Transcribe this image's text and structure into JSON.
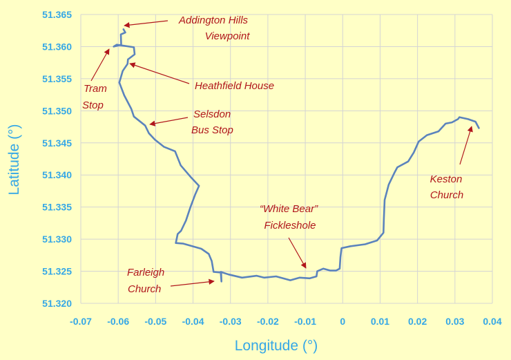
{
  "chart_data": {
    "type": "line",
    "xlabel": "Longitude (°)",
    "ylabel": "Latitude (°)",
    "xlim": [
      -0.07,
      0.04
    ],
    "ylim": [
      51.32,
      51.365
    ],
    "x_ticks": [
      -0.07,
      -0.06,
      -0.05,
      -0.04,
      -0.03,
      -0.02,
      -0.01,
      0,
      0.01,
      0.02,
      0.03,
      0.04
    ],
    "x_tick_labels": [
      "-0.07",
      "-0.06",
      "-0.05",
      "-0.04",
      "-0.03",
      "-0.02",
      "-0.01",
      "0",
      "0.01",
      "0.02",
      "0.03",
      "0.04"
    ],
    "y_ticks": [
      51.32,
      51.325,
      51.33,
      51.335,
      51.34,
      51.345,
      51.35,
      51.355,
      51.36,
      51.365
    ],
    "y_tick_labels": [
      "51.320",
      "51.325",
      "51.330",
      "51.335",
      "51.340",
      "51.345",
      "51.350",
      "51.355",
      "51.360",
      "51.365"
    ],
    "grid": true,
    "line_color": "#5b83bd",
    "annotation_color": "#b0161c",
    "axis_color": "#35a7e6",
    "background": "#ffffc6",
    "series": [
      {
        "points": [
          [
            -0.0586,
            51.3627
          ],
          [
            -0.0581,
            51.3622
          ],
          [
            -0.0593,
            51.3619
          ],
          [
            -0.0592,
            51.3603
          ],
          [
            -0.0612,
            51.36
          ],
          [
            -0.0604,
            51.3603
          ],
          [
            -0.0558,
            51.3599
          ],
          [
            -0.0556,
            51.3588
          ],
          [
            -0.0574,
            51.358
          ],
          [
            -0.0575,
            51.3573
          ],
          [
            -0.0588,
            51.3562
          ],
          [
            -0.0597,
            51.3544
          ],
          [
            -0.0584,
            51.3524
          ],
          [
            -0.0565,
            51.3503
          ],
          [
            -0.0558,
            51.3491
          ],
          [
            -0.0528,
            51.3477
          ],
          [
            -0.0518,
            51.3465
          ],
          [
            -0.0502,
            51.3455
          ],
          [
            -0.0478,
            51.3444
          ],
          [
            -0.0448,
            51.3437
          ],
          [
            -0.0433,
            51.3415
          ],
          [
            -0.0405,
            51.3396
          ],
          [
            -0.0384,
            51.3383
          ],
          [
            -0.0394,
            51.337
          ],
          [
            -0.0407,
            51.335
          ],
          [
            -0.0419,
            51.3329
          ],
          [
            -0.0432,
            51.3313
          ],
          [
            -0.0441,
            51.3308
          ],
          [
            -0.0446,
            51.3294
          ],
          [
            -0.0426,
            51.3293
          ],
          [
            -0.0378,
            51.3285
          ],
          [
            -0.0358,
            51.3277
          ],
          [
            -0.035,
            51.3266
          ],
          [
            -0.0345,
            51.3249
          ],
          [
            -0.0325,
            51.3248
          ],
          [
            -0.0324,
            51.3234
          ],
          [
            -0.0326,
            51.3249
          ],
          [
            -0.0305,
            51.3245
          ],
          [
            -0.0269,
            51.324
          ],
          [
            -0.023,
            51.3243
          ],
          [
            -0.021,
            51.324
          ],
          [
            -0.0178,
            51.3242
          ],
          [
            -0.014,
            51.3236
          ],
          [
            -0.0115,
            51.324
          ],
          [
            -0.0088,
            51.3239
          ],
          [
            -0.007,
            51.3242
          ],
          [
            -0.0068,
            51.325
          ],
          [
            -0.0052,
            51.3254
          ],
          [
            -0.0033,
            51.3251
          ],
          [
            -0.0018,
            51.3251
          ],
          [
            -0.0008,
            51.3254
          ],
          [
            -0.0006,
            51.3272
          ],
          [
            -0.0003,
            51.3286
          ],
          [
            0.0021,
            51.3289
          ],
          [
            0.006,
            51.3292
          ],
          [
            0.0092,
            51.3298
          ],
          [
            0.0109,
            51.331
          ],
          [
            0.011,
            51.3332
          ],
          [
            0.0112,
            51.3361
          ],
          [
            0.0123,
            51.3385
          ],
          [
            0.0138,
            51.3403
          ],
          [
            0.0146,
            51.3412
          ],
          [
            0.0175,
            51.3421
          ],
          [
            0.019,
            51.3435
          ],
          [
            0.0203,
            51.3452
          ],
          [
            0.0225,
            51.3462
          ],
          [
            0.0256,
            51.3468
          ],
          [
            0.0275,
            51.348
          ],
          [
            0.0292,
            51.3482
          ],
          [
            0.0308,
            51.3487
          ],
          [
            0.0312,
            51.349
          ],
          [
            0.0335,
            51.3487
          ],
          [
            0.0355,
            51.3483
          ],
          [
            0.0364,
            51.3473
          ]
        ]
      }
    ],
    "annotations": [
      {
        "lines": [
          "Addington Hills",
          "Viewpoint"
        ]
      },
      {
        "lines": [
          "Tram",
          "Stop"
        ]
      },
      {
        "lines": [
          "Heathfield House"
        ]
      },
      {
        "lines": [
          "Selsdon",
          "Bus Stop"
        ]
      },
      {
        "lines": [
          "Farleigh",
          "Church"
        ]
      },
      {
        "lines": [
          "“White Bear”",
          "Fickleshole"
        ]
      },
      {
        "lines": [
          "Keston",
          "Church"
        ]
      }
    ]
  }
}
